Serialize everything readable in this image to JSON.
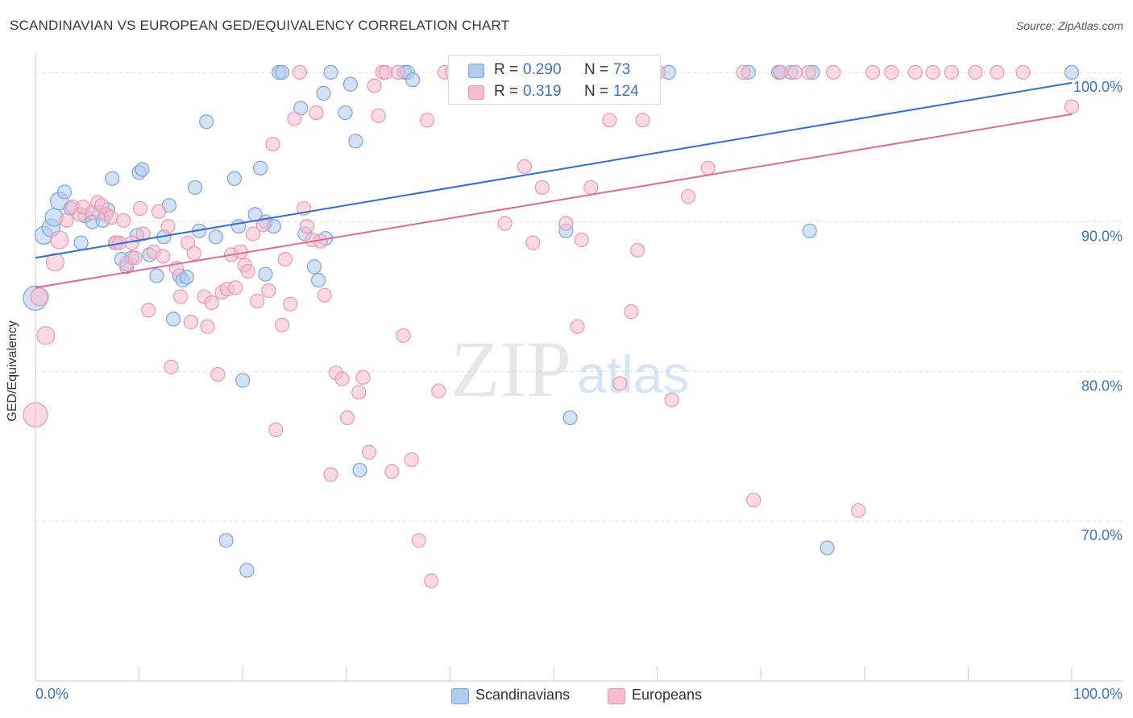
{
  "title": "SCANDINAVIAN VS EUROPEAN GED/EQUIVALENCY CORRELATION CHART",
  "source": "Source: ZipAtlas.com",
  "watermark": {
    "zip": "ZIP",
    "atlas": "atlas"
  },
  "legend_top": {
    "rows": [
      {
        "series": "Scandinavians",
        "r_label": "R =",
        "r_value": "0.290",
        "n_label": "N =",
        "n_value": "73"
      },
      {
        "series": "Europeans",
        "r_label": "R =",
        "r_value": "0.319",
        "n_label": "N =",
        "n_value": "124"
      }
    ]
  },
  "legend_bottom": {
    "items": [
      "Scandinavians",
      "Europeans"
    ]
  },
  "colors": {
    "scandinavians_fill": "#aecbf0",
    "scandinavians_stroke": "#7aa5dc",
    "scandinavians_line": "#2f6fd0",
    "europeans_fill": "#f7bccd",
    "europeans_stroke": "#ec97b0",
    "europeans_line": "#e06a94",
    "tick_label": "#3a72c4",
    "grid": "#dedede"
  },
  "chart_data": {
    "type": "scatter",
    "title": "SCANDINAVIAN VS EUROPEAN GED/EQUIVALENCY CORRELATION CHART",
    "xlabel": "",
    "ylabel": "GED/Equivalency",
    "xlim": [
      0,
      100
    ],
    "ylim": [
      59.3,
      101.5
    ],
    "x_tick_labels": [
      {
        "value": 0,
        "label": "0.0%"
      },
      {
        "value": 100,
        "label": "100.0%"
      }
    ],
    "y_tick_labels": [
      {
        "value": 70,
        "label": "70.0%"
      },
      {
        "value": 80,
        "label": "80.0%"
      },
      {
        "value": 90,
        "label": "90.0%"
      },
      {
        "value": 100,
        "label": "100.0%"
      }
    ],
    "grid": true,
    "legend_position": "top-center",
    "series": [
      {
        "name": "Scandinavians",
        "trend": {
          "x": [
            0,
            100
          ],
          "y": [
            87.6,
            99.3
          ]
        },
        "points": [
          [
            0.0,
            84.9
          ],
          [
            0.8,
            89.1
          ],
          [
            1.5,
            89.6
          ],
          [
            1.8,
            90.3
          ],
          [
            2.3,
            91.4
          ],
          [
            2.8,
            92.0
          ],
          [
            3.4,
            90.9
          ],
          [
            4.4,
            88.6
          ],
          [
            4.8,
            90.4
          ],
          [
            5.5,
            90.0
          ],
          [
            6.2,
            90.6
          ],
          [
            6.5,
            90.1
          ],
          [
            7.0,
            90.8
          ],
          [
            7.4,
            92.9
          ],
          [
            7.8,
            88.6
          ],
          [
            8.3,
            87.5
          ],
          [
            8.8,
            87.0
          ],
          [
            9.3,
            87.6
          ],
          [
            9.8,
            89.1
          ],
          [
            10.0,
            93.3
          ],
          [
            10.3,
            93.5
          ],
          [
            11.0,
            87.8
          ],
          [
            11.7,
            86.4
          ],
          [
            12.4,
            89.0
          ],
          [
            12.9,
            91.1
          ],
          [
            13.3,
            83.5
          ],
          [
            13.9,
            86.4
          ],
          [
            14.2,
            86.1
          ],
          [
            14.6,
            86.3
          ],
          [
            15.4,
            92.3
          ],
          [
            15.8,
            89.4
          ],
          [
            16.5,
            96.7
          ],
          [
            17.4,
            89.0
          ],
          [
            18.4,
            68.7
          ],
          [
            19.2,
            92.9
          ],
          [
            19.6,
            89.7
          ],
          [
            20.0,
            79.4
          ],
          [
            20.4,
            66.7
          ],
          [
            21.2,
            90.5
          ],
          [
            21.7,
            93.6
          ],
          [
            22.2,
            90.0
          ],
          [
            22.2,
            86.5
          ],
          [
            23.0,
            89.7
          ],
          [
            23.5,
            100.0
          ],
          [
            23.8,
            100.0
          ],
          [
            25.6,
            97.6
          ],
          [
            26.0,
            89.2
          ],
          [
            26.9,
            87.0
          ],
          [
            27.3,
            86.1
          ],
          [
            27.8,
            98.6
          ],
          [
            28.0,
            88.9
          ],
          [
            28.5,
            100.0
          ],
          [
            29.9,
            97.3
          ],
          [
            30.4,
            99.2
          ],
          [
            30.9,
            95.4
          ],
          [
            31.3,
            73.4
          ],
          [
            35.6,
            100.0
          ],
          [
            35.9,
            100.0
          ],
          [
            36.4,
            99.5
          ],
          [
            43.0,
            100.0
          ],
          [
            46.8,
            100.0
          ],
          [
            51.2,
            89.4
          ],
          [
            51.6,
            76.9
          ],
          [
            58.0,
            100.0
          ],
          [
            61.1,
            100.0
          ],
          [
            68.8,
            100.0
          ],
          [
            71.7,
            100.0
          ],
          [
            71.9,
            100.0
          ],
          [
            72.9,
            100.0
          ],
          [
            74.7,
            89.4
          ],
          [
            75.0,
            100.0
          ],
          [
            76.4,
            68.2
          ],
          [
            100.0,
            100.0
          ]
        ]
      },
      {
        "name": "Europeans",
        "trend": {
          "x": [
            0,
            100
          ],
          "y": [
            85.6,
            97.2
          ]
        },
        "points": [
          [
            0.0,
            77.1
          ],
          [
            0.4,
            85.0
          ],
          [
            1.0,
            82.4
          ],
          [
            1.9,
            87.3
          ],
          [
            2.3,
            88.8
          ],
          [
            3.0,
            90.1
          ],
          [
            3.6,
            91.0
          ],
          [
            4.3,
            90.5
          ],
          [
            4.6,
            91.0
          ],
          [
            5.5,
            90.6
          ],
          [
            6.0,
            91.3
          ],
          [
            6.4,
            91.1
          ],
          [
            6.8,
            90.5
          ],
          [
            7.3,
            90.3
          ],
          [
            7.7,
            88.6
          ],
          [
            8.1,
            88.6
          ],
          [
            8.5,
            90.1
          ],
          [
            8.8,
            87.2
          ],
          [
            9.3,
            88.6
          ],
          [
            9.6,
            87.6
          ],
          [
            10.1,
            90.9
          ],
          [
            10.4,
            89.2
          ],
          [
            10.9,
            84.1
          ],
          [
            11.4,
            88.0
          ],
          [
            11.9,
            90.7
          ],
          [
            12.3,
            87.7
          ],
          [
            12.8,
            89.7
          ],
          [
            13.1,
            80.3
          ],
          [
            13.6,
            86.9
          ],
          [
            14.0,
            85.0
          ],
          [
            14.7,
            88.6
          ],
          [
            15.0,
            83.3
          ],
          [
            15.3,
            87.9
          ],
          [
            16.3,
            85.0
          ],
          [
            16.6,
            83.0
          ],
          [
            17.0,
            84.6
          ],
          [
            17.6,
            79.8
          ],
          [
            18.0,
            85.3
          ],
          [
            18.5,
            85.5
          ],
          [
            18.9,
            87.8
          ],
          [
            19.3,
            85.6
          ],
          [
            19.8,
            88.0
          ],
          [
            20.2,
            87.1
          ],
          [
            20.5,
            86.7
          ],
          [
            21.0,
            89.2
          ],
          [
            21.4,
            84.7
          ],
          [
            22.0,
            89.8
          ],
          [
            22.5,
            85.4
          ],
          [
            22.9,
            95.2
          ],
          [
            23.2,
            76.1
          ],
          [
            23.8,
            83.1
          ],
          [
            24.1,
            87.5
          ],
          [
            24.6,
            84.5
          ],
          [
            25.0,
            96.9
          ],
          [
            25.5,
            100.0
          ],
          [
            25.9,
            90.9
          ],
          [
            26.2,
            89.7
          ],
          [
            26.7,
            88.8
          ],
          [
            27.1,
            97.3
          ],
          [
            27.5,
            88.7
          ],
          [
            27.9,
            85.1
          ],
          [
            28.5,
            73.1
          ],
          [
            29.0,
            79.9
          ],
          [
            29.6,
            79.5
          ],
          [
            30.1,
            76.9
          ],
          [
            31.2,
            78.6
          ],
          [
            31.6,
            79.6
          ],
          [
            32.2,
            74.6
          ],
          [
            32.7,
            99.1
          ],
          [
            33.1,
            97.1
          ],
          [
            33.5,
            100.0
          ],
          [
            33.8,
            100.0
          ],
          [
            34.4,
            73.3
          ],
          [
            35.0,
            100.0
          ],
          [
            35.5,
            82.4
          ],
          [
            36.3,
            74.1
          ],
          [
            37.0,
            68.7
          ],
          [
            37.8,
            96.8
          ],
          [
            38.2,
            66.0
          ],
          [
            38.9,
            78.7
          ],
          [
            39.5,
            100.0
          ],
          [
            40.2,
            100.0
          ],
          [
            41.3,
            100.0
          ],
          [
            42.5,
            100.0
          ],
          [
            43.1,
            100.0
          ],
          [
            44.1,
            100.0
          ],
          [
            45.3,
            89.9
          ],
          [
            46.7,
            100.0
          ],
          [
            47.2,
            93.7
          ],
          [
            48.0,
            88.6
          ],
          [
            48.9,
            92.3
          ],
          [
            50.3,
            100.0
          ],
          [
            51.2,
            89.9
          ],
          [
            52.3,
            83.0
          ],
          [
            52.7,
            88.8
          ],
          [
            53.6,
            92.3
          ],
          [
            54.7,
            100.0
          ],
          [
            55.4,
            96.8
          ],
          [
            55.8,
            100.0
          ],
          [
            56.4,
            79.2
          ],
          [
            57.5,
            84.0
          ],
          [
            58.1,
            88.1
          ],
          [
            58.6,
            96.8
          ],
          [
            60.1,
            100.0
          ],
          [
            61.4,
            78.1
          ],
          [
            63.0,
            91.7
          ],
          [
            64.9,
            93.6
          ],
          [
            68.3,
            100.0
          ],
          [
            69.3,
            71.4
          ],
          [
            71.9,
            100.0
          ],
          [
            73.3,
            100.0
          ],
          [
            74.6,
            100.0
          ],
          [
            77.0,
            100.0
          ],
          [
            79.4,
            70.7
          ],
          [
            80.8,
            100.0
          ],
          [
            82.6,
            100.0
          ],
          [
            84.9,
            100.0
          ],
          [
            86.6,
            100.0
          ],
          [
            88.4,
            100.0
          ],
          [
            90.7,
            100.0
          ],
          [
            92.8,
            100.0
          ],
          [
            95.3,
            100.0
          ],
          [
            100.0,
            97.7
          ]
        ]
      }
    ]
  }
}
